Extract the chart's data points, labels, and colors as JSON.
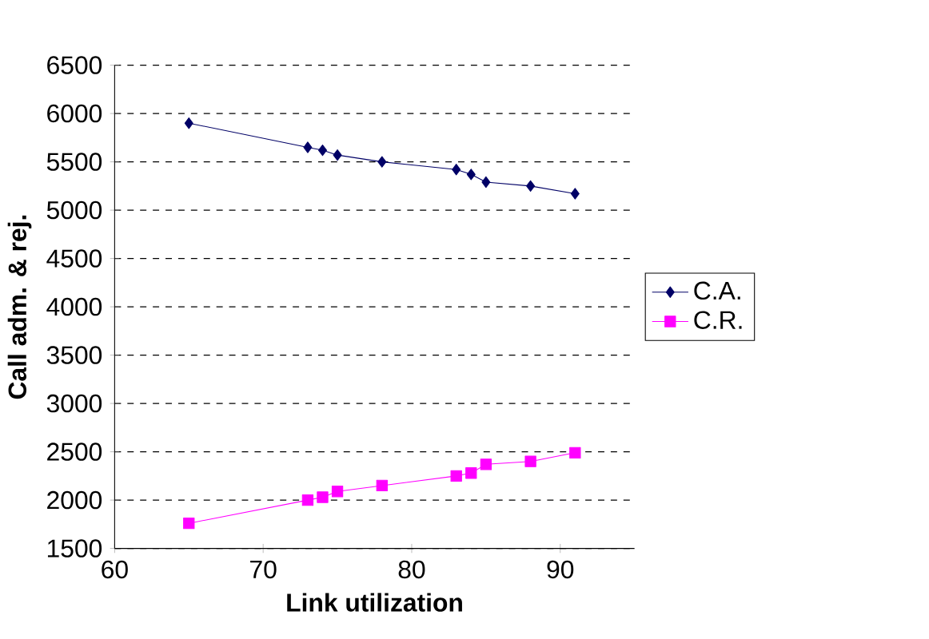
{
  "chart_data": {
    "type": "line",
    "xlabel": "Link utilization",
    "ylabel": "Call adm. & rej.",
    "x": [
      65,
      73,
      74,
      75,
      78,
      83,
      84,
      85,
      88,
      91
    ],
    "series": [
      {
        "name": "C.A.",
        "color": "#000066",
        "marker": "diamond",
        "values": [
          5900,
          5650,
          5620,
          5570,
          5500,
          5420,
          5370,
          5290,
          5250,
          5170
        ]
      },
      {
        "name": "C.R.",
        "color": "#ff00ff",
        "marker": "square",
        "values": [
          1760,
          2000,
          2030,
          2090,
          2150,
          2250,
          2280,
          2370,
          2400,
          2490
        ]
      }
    ],
    "xlim": [
      60,
      95
    ],
    "ylim": [
      1500,
      6500
    ],
    "xticks": [
      60,
      70,
      80,
      90
    ],
    "yticks": [
      1500,
      2000,
      2500,
      3000,
      3500,
      4000,
      4500,
      5000,
      5500,
      6000,
      6500
    ],
    "grid": "y",
    "legend": "right"
  }
}
